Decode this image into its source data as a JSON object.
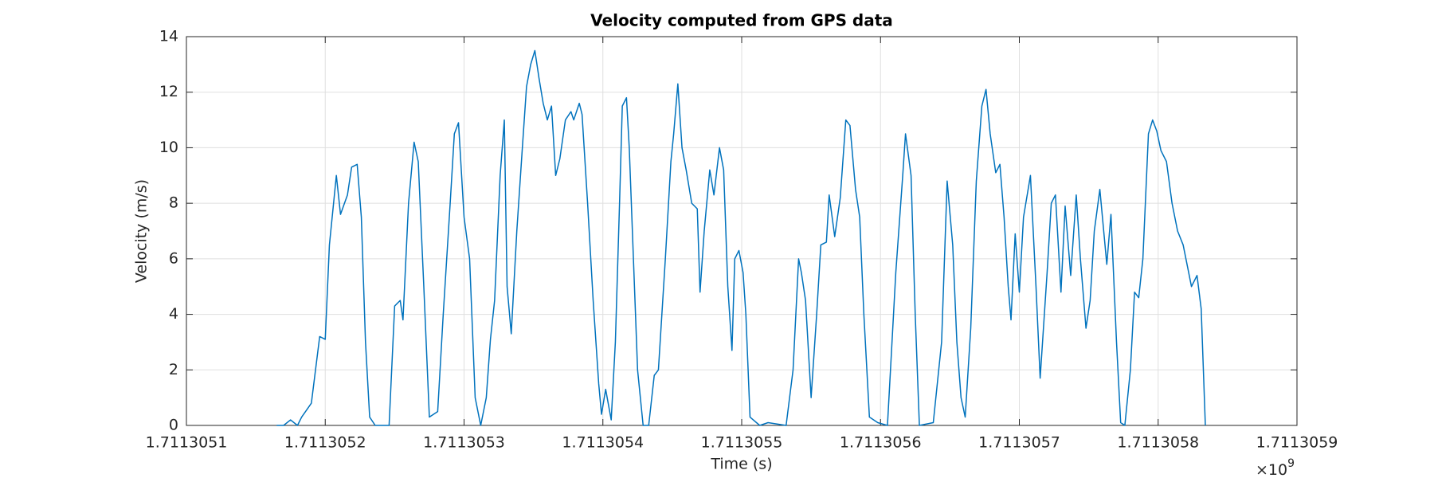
{
  "chart_data": {
    "type": "line",
    "title": "Velocity computed from GPS data",
    "x_label": "Time (s)",
    "y_label": "Velocity (m/s)",
    "x_exponent": {
      "base": "×10",
      "power": "9"
    },
    "grid": true,
    "xlim": [
      1711305100,
      1711305900
    ],
    "xticks": [
      {
        "value": 1711305100,
        "label": "1.7113051"
      },
      {
        "value": 1711305200,
        "label": "1.7113052"
      },
      {
        "value": 1711305300,
        "label": "1.7113053"
      },
      {
        "value": 1711305400,
        "label": "1.7113054"
      },
      {
        "value": 1711305500,
        "label": "1.7113055"
      },
      {
        "value": 1711305600,
        "label": "1.7113056"
      },
      {
        "value": 1711305700,
        "label": "1.7113057"
      },
      {
        "value": 1711305800,
        "label": "1.7113058"
      },
      {
        "value": 1711305900,
        "label": "1.7113059"
      }
    ],
    "ylim": [
      0,
      14
    ],
    "yticks": [
      0,
      2,
      4,
      6,
      8,
      10,
      12,
      14
    ],
    "x": [
      1711305165,
      1711305170,
      1711305175,
      1711305180,
      1711305183,
      1711305190,
      1711305196,
      1711305200,
      1711305203,
      1711305208,
      1711305211,
      1711305216,
      1711305219,
      1711305223,
      1711305226,
      1711305229,
      1711305232,
      1711305236,
      1711305246,
      1711305250,
      1711305254,
      1711305256,
      1711305260,
      1711305264,
      1711305267,
      1711305271,
      1711305275,
      1711305281,
      1711305285,
      1711305290,
      1711305293,
      1711305296,
      1711305300,
      1711305304,
      1711305308,
      1711305312,
      1711305316,
      1711305319,
      1711305322,
      1711305326,
      1711305329,
      1711305331,
      1711305334,
      1711305338,
      1711305342,
      1711305345,
      1711305348,
      1711305351,
      1711305354,
      1711305357,
      1711305360,
      1711305363,
      1711305366,
      1711305369,
      1711305373,
      1711305377,
      1711305379,
      1711305383,
      1711305385,
      1711305389,
      1711305393,
      1711305397,
      1711305399,
      1711305402,
      1711305406,
      1711305409,
      1711305412,
      1711305414,
      1711305417,
      1711305419,
      1711305422,
      1711305425,
      1711305429,
      1711305433,
      1711305437,
      1711305440,
      1711305445,
      1711305449,
      1711305451,
      1711305454,
      1711305457,
      1711305460,
      1711305464,
      1711305468,
      1711305470,
      1711305473,
      1711305477,
      1711305480,
      1711305484,
      1711305487,
      1711305490,
      1711305493,
      1711305495,
      1711305498,
      1711305501,
      1711305503,
      1711305506,
      1711305513,
      1711305519,
      1711305532,
      1711305537,
      1711305541,
      1711305543,
      1711305546,
      1711305550,
      1711305554,
      1711305557,
      1711305561,
      1711305563,
      1711305567,
      1711305571,
      1711305575,
      1711305578,
      1711305582,
      1711305585,
      1711305588,
      1711305592,
      1711305598,
      1711305605,
      1711305611,
      1711305616,
      1711305618,
      1711305622,
      1711305625,
      1711305628,
      1711305638,
      1711305644,
      1711305648,
      1711305652,
      1711305655,
      1711305658,
      1711305661,
      1711305665,
      1711305669,
      1711305673,
      1711305676,
      1711305679,
      1711305683,
      1711305686,
      1711305689,
      1711305692,
      1711305694,
      1711305697,
      1711305700,
      1711305703,
      1711305708,
      1711305712,
      1711305715,
      1711305720,
      1711305723,
      1711305726,
      1711305730,
      1711305733,
      1711305737,
      1711305741,
      1711305744,
      1711305748,
      1711305751,
      1711305754,
      1711305758,
      1711305763,
      1711305766,
      1711305770,
      1711305773,
      1711305776,
      1711305780,
      1711305783,
      1711305786,
      1711305789,
      1711305793,
      1711305796,
      1711305799,
      1711305802,
      1711305806,
      1711305810,
      1711305814,
      1711305818,
      1711305822,
      1711305824,
      1711305828,
      1711305831,
      1711305834
    ],
    "series": [
      {
        "color": "#0072bd",
        "values": [
          0,
          0,
          0.2,
          0,
          0.3,
          0.8,
          3.2,
          3.1,
          6.5,
          9,
          7.6,
          8.3,
          9.3,
          9.4,
          7.5,
          3,
          0.3,
          0,
          0,
          4.3,
          4.5,
          3.8,
          8,
          10.2,
          9.5,
          5,
          0.3,
          0.5,
          4,
          8,
          10.5,
          10.9,
          7.5,
          6,
          1,
          0,
          1,
          3.1,
          4.5,
          9,
          11,
          5,
          3.3,
          7,
          10,
          12.2,
          13,
          13.5,
          12.5,
          11.6,
          11,
          11.5,
          9,
          9.6,
          11,
          11.3,
          11,
          11.6,
          11.2,
          8,
          4.5,
          1.5,
          0.4,
          1.3,
          0.2,
          3,
          8,
          11.5,
          11.8,
          10,
          6,
          2,
          0,
          0,
          1.8,
          2,
          6,
          9.5,
          10.5,
          12.3,
          10,
          9.2,
          8,
          7.8,
          4.8,
          7,
          9.2,
          8.3,
          10,
          9.2,
          5,
          2.7,
          6,
          6.3,
          5.5,
          4,
          0.3,
          0,
          0.1,
          0,
          2,
          6,
          5.5,
          4.5,
          1,
          4,
          6.5,
          6.6,
          8.3,
          6.8,
          8.2,
          11,
          10.8,
          8.5,
          7.5,
          4,
          0.3,
          0.1,
          0,
          5.5,
          9,
          10.5,
          9,
          4,
          0,
          0.1,
          3,
          8.8,
          6.5,
          3,
          1,
          0.3,
          3.5,
          8.8,
          11.5,
          12.1,
          10.5,
          9.1,
          9.4,
          7.5,
          5,
          3.8,
          6.9,
          4.8,
          7.5,
          9,
          5,
          1.7,
          5.5,
          8,
          8.3,
          4.8,
          7.9,
          5.4,
          8.3,
          6,
          3.5,
          4.5,
          7,
          8.5,
          5.8,
          7.6,
          3,
          0.1,
          0,
          2,
          4.8,
          4.6,
          6,
          10.5,
          11,
          10.6,
          9.9,
          9.5,
          8,
          7,
          6.5,
          5.5,
          5,
          5.4,
          4.2,
          0
        ]
      }
    ]
  }
}
